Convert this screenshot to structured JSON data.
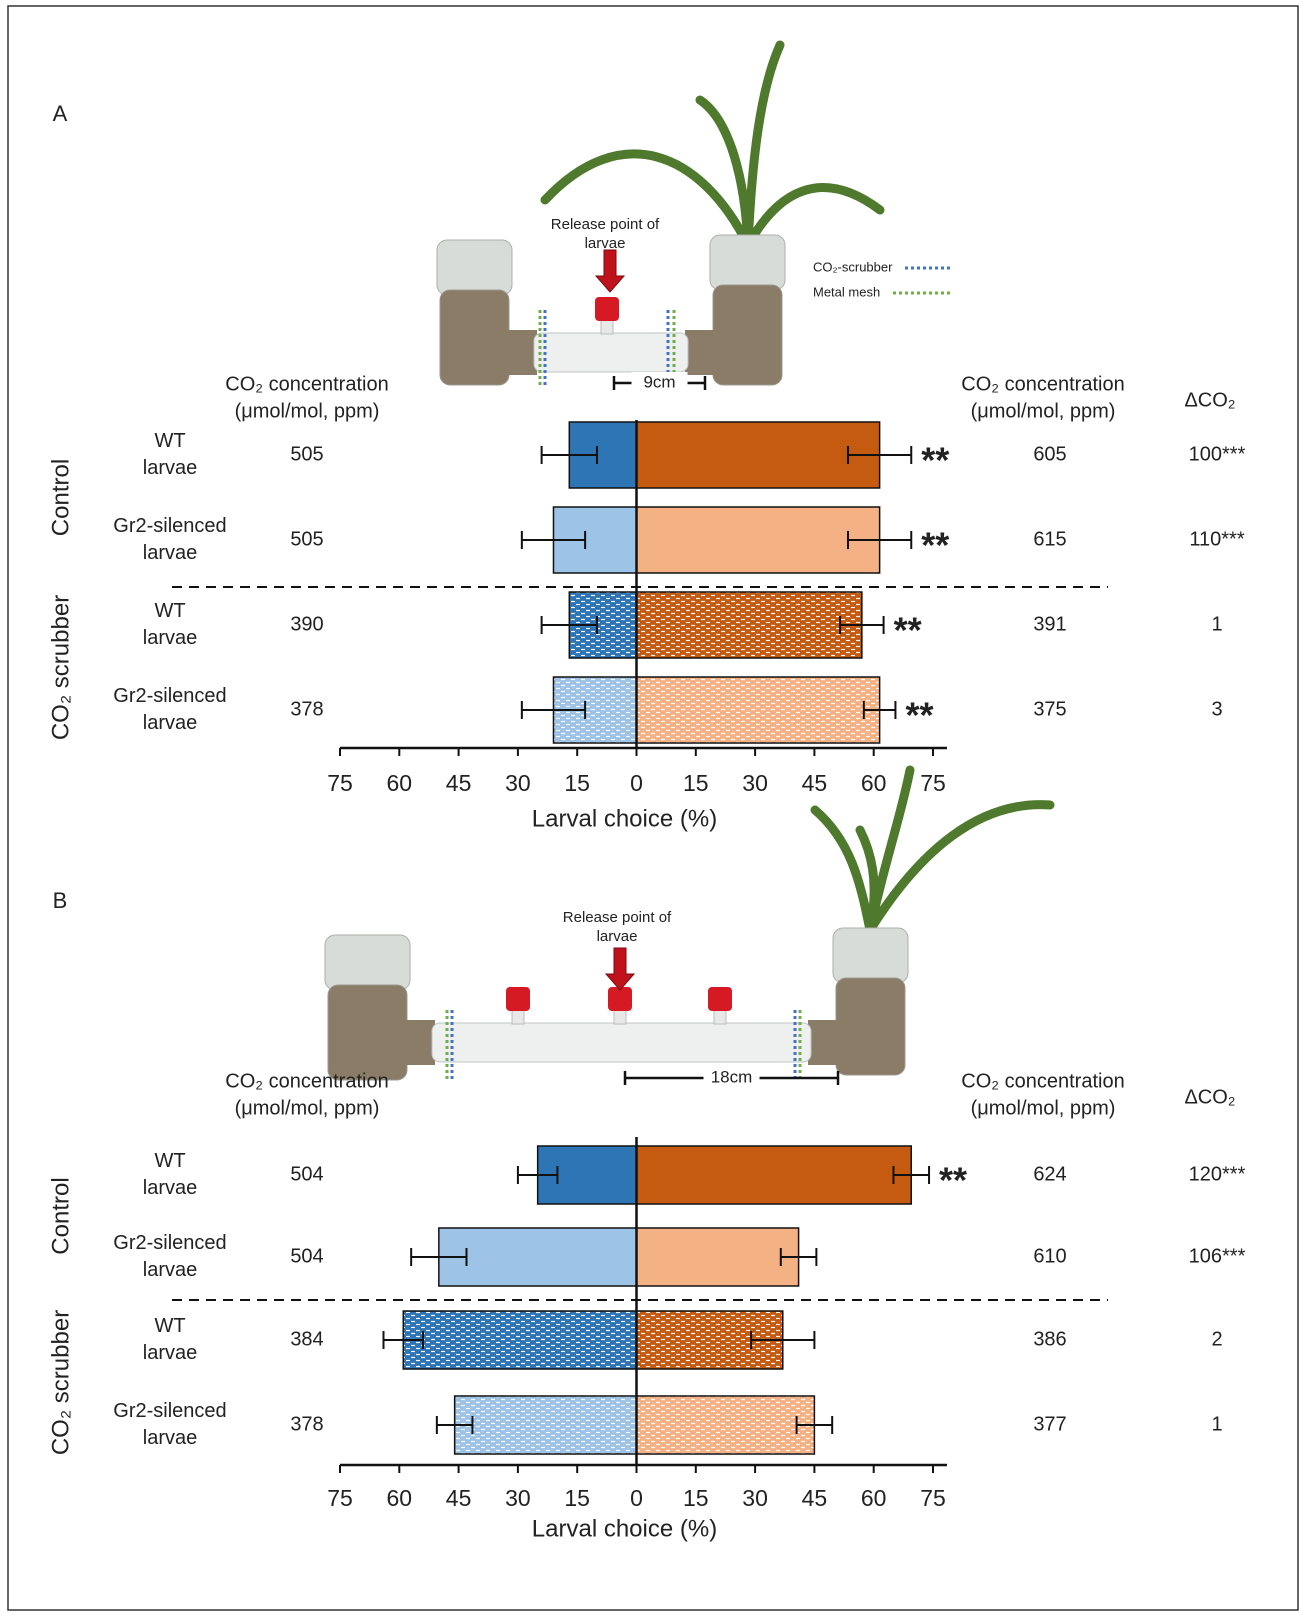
{
  "chart_data": [
    {
      "type": "bar",
      "orientation": "horizontal",
      "panel": "A",
      "photo": {
        "release_label": [
          "Release point of",
          "larvae"
        ],
        "scale": "9cm",
        "legend": [
          "CO₂-scrubber",
          "Metal mesh"
        ],
        "legend_colors": [
          "#4472c4",
          "#70ad47"
        ]
      },
      "left_header": [
        "CO₂ concentration",
        "(μmol/mol, ppm)"
      ],
      "right_header": [
        "CO₂ concentration",
        "(μmol/mol, ppm)"
      ],
      "delta_header": "ΔCO₂",
      "groups": [
        "Control",
        "CO₂ scrubber"
      ],
      "categories": [
        [
          "WT",
          "larvae"
        ],
        [
          "Gr2-silenced",
          "larvae"
        ],
        [
          "WT",
          "larvae"
        ],
        [
          "Gr2-silenced",
          "larvae"
        ]
      ],
      "left_ppm": [
        505,
        505,
        390,
        378
      ],
      "right_ppm": [
        605,
        615,
        391,
        375
      ],
      "delta_labels": [
        "100***",
        "110***",
        "1",
        "3"
      ],
      "hatched": [
        false,
        false,
        true,
        true
      ],
      "series": [
        {
          "values": [
            -17,
            -21,
            -17,
            -21
          ],
          "errors": [
            7,
            8,
            7,
            8
          ],
          "colors": [
            "#2e75b6",
            "#9dc3e6",
            "#2e75b6",
            "#9dc3e6"
          ]
        },
        {
          "values": [
            61.5,
            61.5,
            57,
            61.5
          ],
          "errors": [
            8,
            8,
            5.5,
            4
          ],
          "colors": [
            "#c55a11",
            "#f4b183",
            "#c55a11",
            "#f4b183"
          ],
          "significance": [
            "**",
            "**",
            "**",
            "**"
          ]
        }
      ],
      "xlim": [
        -75,
        75
      ],
      "xticks": [
        {
          "value": -75,
          "label": "75"
        },
        {
          "value": -60,
          "label": "60"
        },
        {
          "value": -45,
          "label": "45"
        },
        {
          "value": -30,
          "label": "30"
        },
        {
          "value": -15,
          "label": "15"
        },
        0,
        15,
        30,
        45,
        60,
        75
      ],
      "xlabel": "Larval choice (%)"
    },
    {
      "type": "bar",
      "orientation": "horizontal",
      "panel": "B",
      "photo": {
        "release_label": [
          "Release point of",
          "larvae"
        ],
        "scale": "18cm"
      },
      "left_header": [
        "CO₂ concentration",
        "(μmol/mol, ppm)"
      ],
      "right_header": [
        "CO₂ concentration",
        "(μmol/mol, ppm)"
      ],
      "delta_header": "ΔCO₂",
      "groups": [
        "Control",
        "CO₂ scrubber"
      ],
      "categories": [
        [
          "WT",
          "larvae"
        ],
        [
          "Gr2-silenced",
          "larvae"
        ],
        [
          "WT",
          "larvae"
        ],
        [
          "Gr2-silenced",
          "larvae"
        ]
      ],
      "left_ppm": [
        504,
        504,
        384,
        378
      ],
      "right_ppm": [
        624,
        610,
        386,
        377
      ],
      "delta_labels": [
        "120***",
        "106***",
        "2",
        "1"
      ],
      "hatched": [
        false,
        false,
        true,
        true
      ],
      "series": [
        {
          "values": [
            -25,
            -50,
            -59,
            -46
          ],
          "errors": [
            5,
            7,
            5,
            4.5
          ],
          "colors": [
            "#2e75b6",
            "#9dc3e6",
            "#2e75b6",
            "#9dc3e6"
          ]
        },
        {
          "values": [
            69.5,
            41,
            37,
            45
          ],
          "errors": [
            4.5,
            4.5,
            8,
            4.5
          ],
          "colors": [
            "#c55a11",
            "#f4b183",
            "#c55a11",
            "#f4b183"
          ],
          "significance": [
            "**",
            null,
            null,
            null
          ]
        }
      ],
      "xlim": [
        -75,
        75
      ],
      "xticks": [
        {
          "value": -75,
          "label": "75"
        },
        {
          "value": -60,
          "label": "60"
        },
        {
          "value": -45,
          "label": "45"
        },
        {
          "value": -30,
          "label": "30"
        },
        {
          "value": -15,
          "label": "15"
        },
        0,
        15,
        30,
        45,
        60,
        75
      ],
      "xlabel": "Larval choice (%)"
    }
  ]
}
